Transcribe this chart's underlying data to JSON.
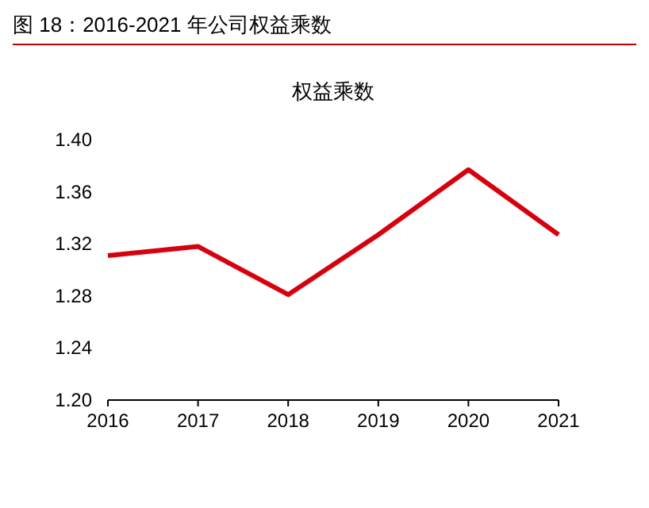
{
  "chart_data": {
    "type": "line",
    "title": "图 18：2016-2021 年公司权益乘数",
    "subtitle": "权益乘数",
    "categories": [
      "2016",
      "2017",
      "2018",
      "2019",
      "2020",
      "2021"
    ],
    "series": [
      {
        "color": "#d7000f",
        "values": [
          1.311,
          1.318,
          1.281,
          1.327,
          1.377,
          1.327
        ]
      }
    ],
    "ylim": [
      1.2,
      1.4
    ],
    "yticks": [
      {
        "value": 1.2,
        "label": "1.20"
      },
      {
        "value": 1.24,
        "label": "1.24"
      },
      {
        "value": 1.28,
        "label": "1.28"
      },
      {
        "value": 1.32,
        "label": "1.32"
      },
      {
        "value": 1.36,
        "label": "1.36"
      },
      {
        "value": 1.4,
        "label": "1.40"
      }
    ],
    "grid": false,
    "marker": "none",
    "line_style": "solid"
  }
}
